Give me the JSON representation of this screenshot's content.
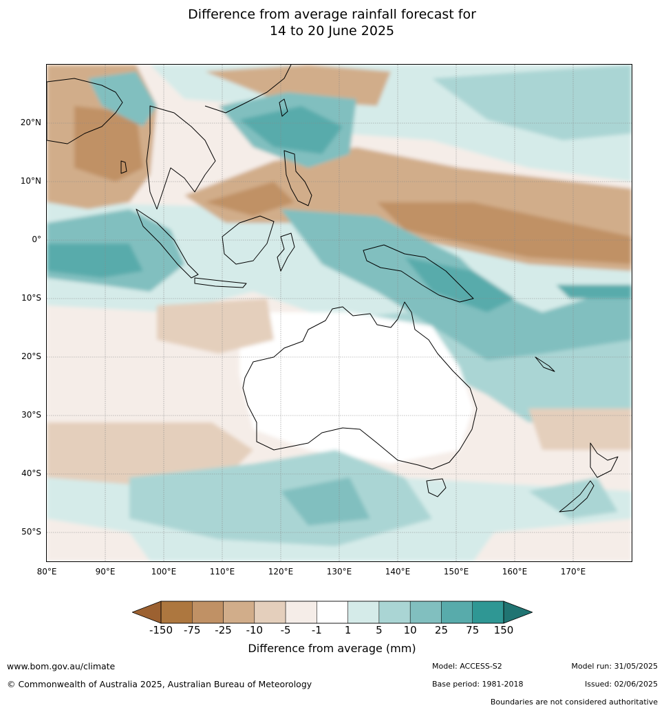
{
  "title_line1": "Difference from average rainfall forecast for",
  "title_line2": "14 to 20 June 2025",
  "map": {
    "lon_labels": [
      "80°E",
      "90°E",
      "100°E",
      "110°E",
      "120°E",
      "130°E",
      "140°E",
      "150°E",
      "160°E",
      "170°E"
    ],
    "lat_labels": [
      "20°N",
      "10°N",
      "0°",
      "10°S",
      "20°S",
      "30°S",
      "40°S",
      "50°S"
    ],
    "lon_range": [
      80,
      180
    ],
    "lat_range": [
      -55,
      30
    ],
    "grid": true
  },
  "legend": {
    "label": "Difference from average (mm)",
    "ticks": [
      "-150",
      "-75",
      "-25",
      "-10",
      "-5",
      "-1",
      "1",
      "5",
      "10",
      "25",
      "75",
      "150"
    ],
    "colors": [
      "#9c6131",
      "#ad773f",
      "#c09165",
      "#d1ad8a",
      "#e4cfbc",
      "#f5ede8",
      "#ffffff",
      "#d5ebe9",
      "#aad5d4",
      "#81bfbf",
      "#58abab",
      "#2f9794",
      "#207472"
    ]
  },
  "footer": {
    "website": "www.bom.gov.au/climate",
    "copyright": "© Commonwealth of Australia 2025, Australian Bureau of Meteorology",
    "model": "Model: ACCESS-S2",
    "base_period": "Base period: 1981-2018",
    "model_run": "Model run: 31/05/2025",
    "issued": "Issued: 02/06/2025",
    "boundaries": "Boundaries are not considered authoritative"
  }
}
